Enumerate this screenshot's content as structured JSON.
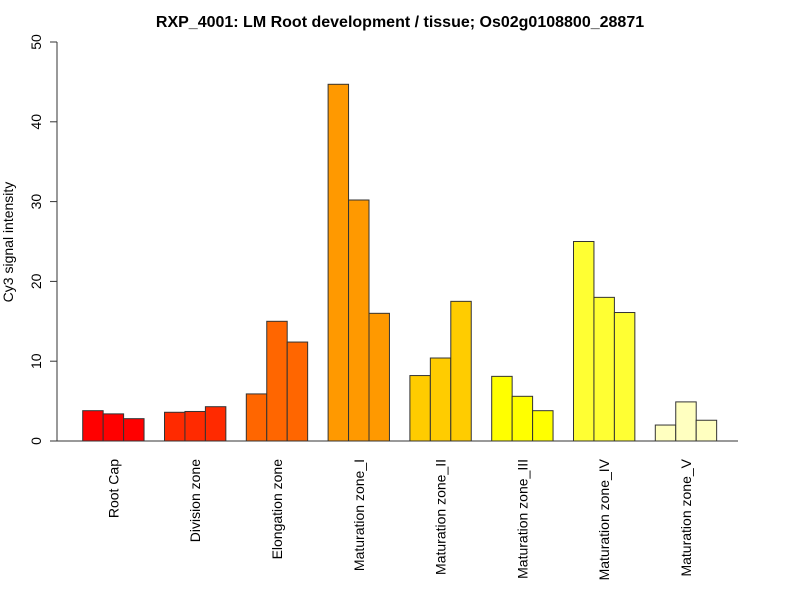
{
  "chart_data": {
    "type": "bar",
    "title": "RXP_4001: LM Root development / tissue; Os02g0108800_28871",
    "xlabel": "",
    "ylabel": "Cy3 signal intensity",
    "ylim": [
      0,
      50
    ],
    "yticks": [
      0,
      10,
      20,
      30,
      40,
      50
    ],
    "grid": false,
    "legend": "none",
    "categories": [
      "Root Cap",
      "Division zone",
      "Elongation zone",
      "Maturation zone_I",
      "Maturation zone_II",
      "Maturation zone_III",
      "Maturation zone_IV",
      "Maturation zone_V"
    ],
    "colors": [
      "#FF0000",
      "#FF2A00",
      "#FF6600",
      "#FF9900",
      "#FFCC00",
      "#FFFF00",
      "#FFFF33",
      "#FFFFC0"
    ],
    "series": [
      {
        "name": "replicate 1",
        "values": [
          3.8,
          3.6,
          5.9,
          44.7,
          8.2,
          8.1,
          25.0,
          2.0
        ]
      },
      {
        "name": "replicate 2",
        "values": [
          3.4,
          3.7,
          15.0,
          30.2,
          10.4,
          5.6,
          18.0,
          4.9
        ]
      },
      {
        "name": "replicate 3",
        "values": [
          2.8,
          4.3,
          12.4,
          16.0,
          17.5,
          3.8,
          16.1,
          2.6
        ]
      }
    ]
  }
}
